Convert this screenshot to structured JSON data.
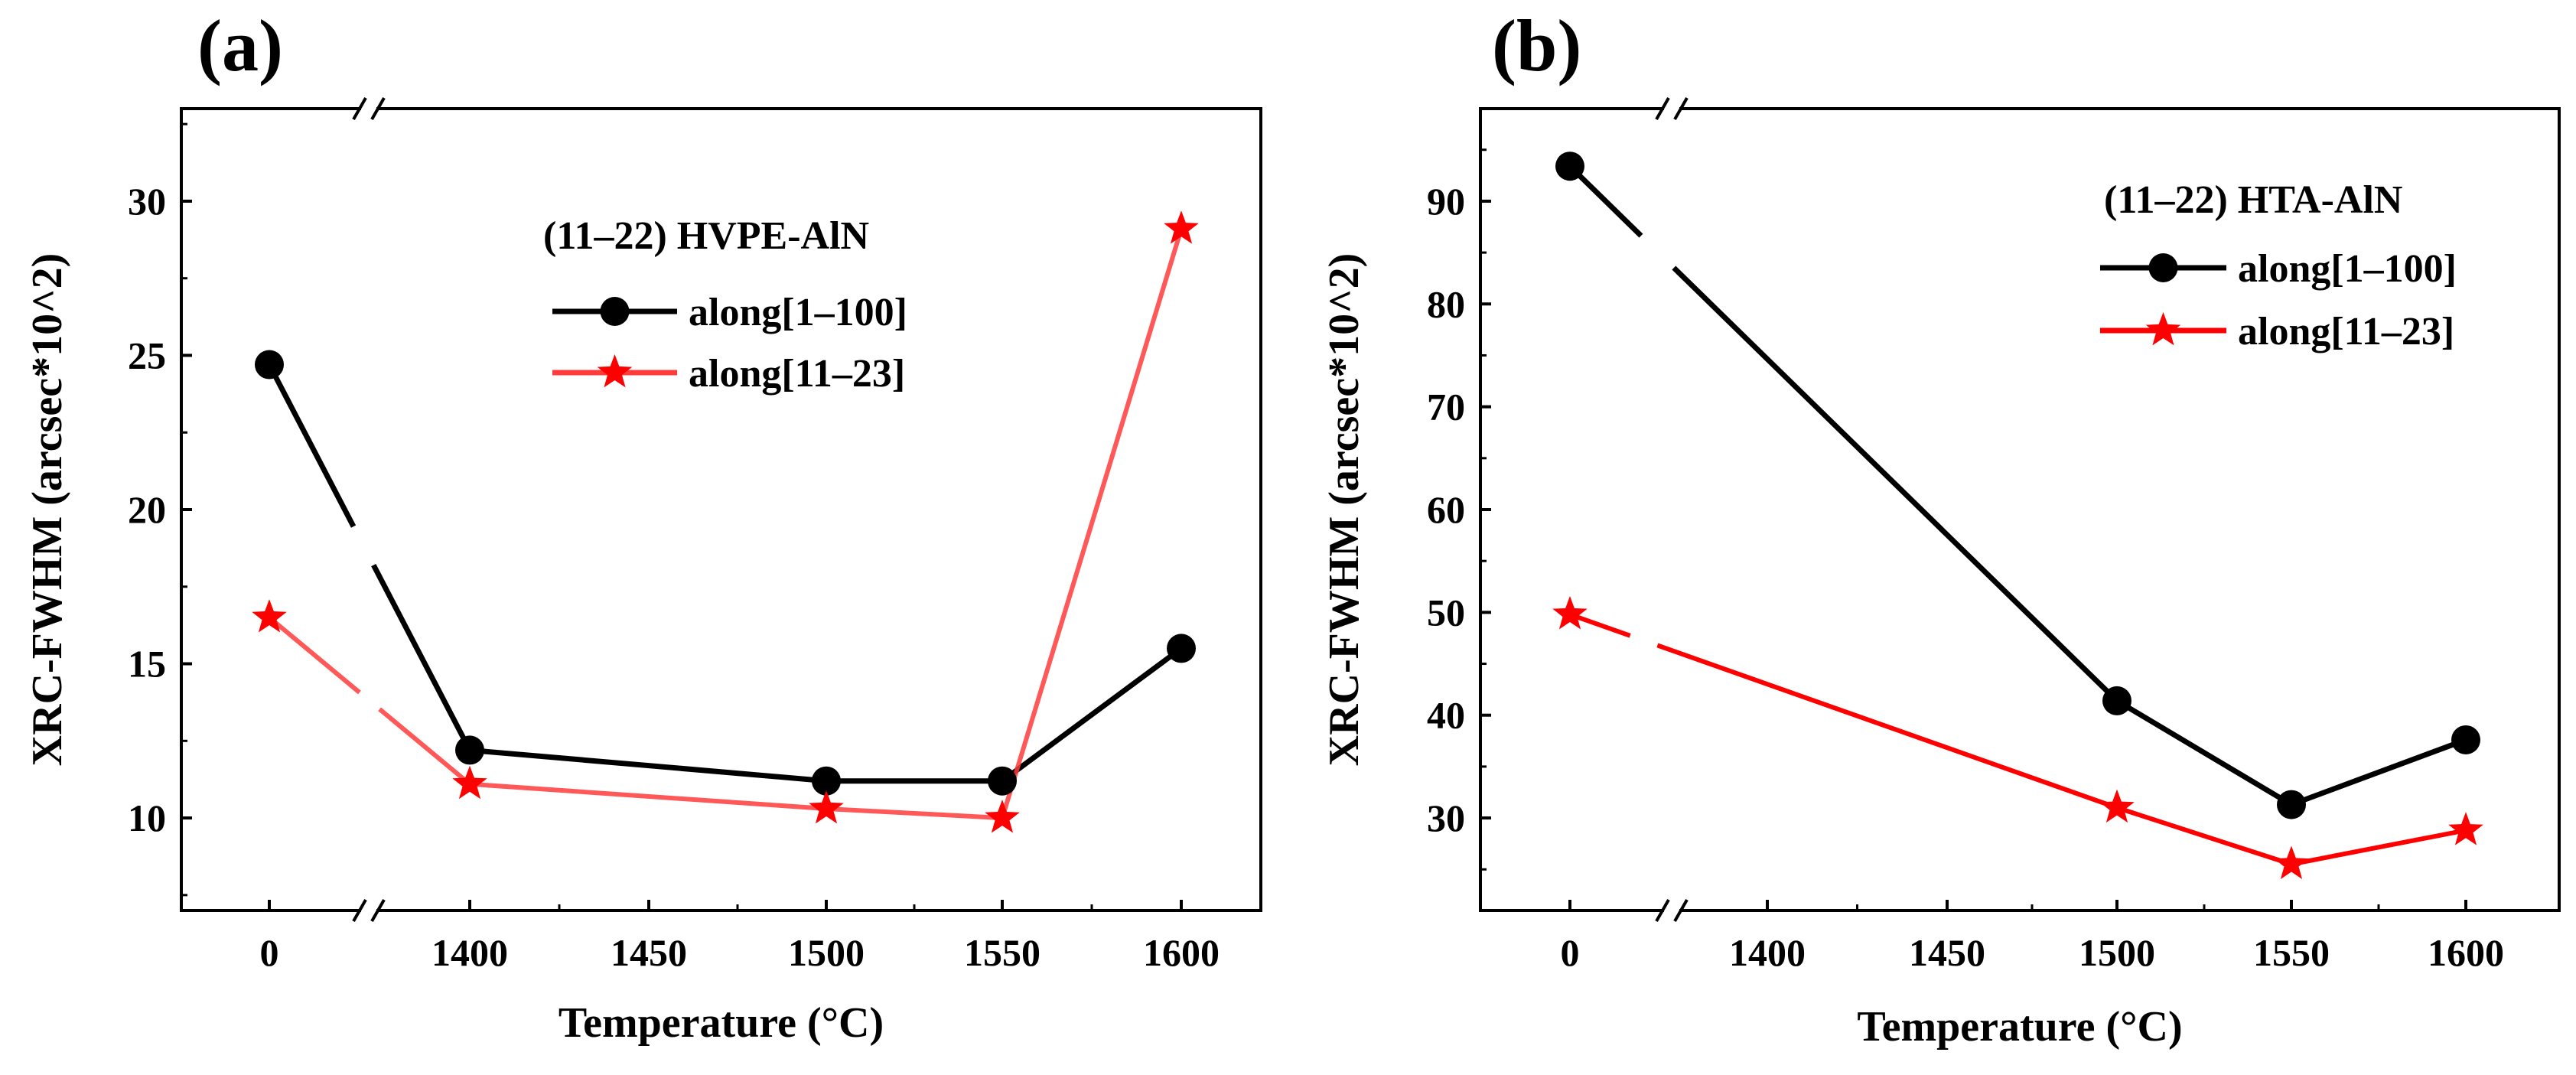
{
  "chart_data": [
    {
      "type": "line",
      "panel_label": "(a)",
      "legend_title": "(11–22) HVPE-AlN",
      "xlabel": "Temperature (°C)",
      "ylabel": "XRC-FWHM (arcsec*10^2)",
      "x_tick_labels": [
        "0",
        "1400",
        "1450",
        "1500",
        "1550",
        "1600"
      ],
      "x_axis_break": "between 0 and 1400",
      "ylim": [
        7,
        33
      ],
      "y_ticks": [
        10,
        15,
        20,
        25,
        30
      ],
      "legend_position": "top-right",
      "grid": false,
      "series": [
        {
          "name": "along[1–100]",
          "color": "#000000",
          "marker": "circle",
          "x": [
            0,
            1400,
            1500,
            1550,
            1600
          ],
          "values": [
            24.7,
            12.2,
            11.2,
            11.2,
            15.5
          ]
        },
        {
          "name": "along[11–23]",
          "color": "#ff3b3b",
          "marker": "star",
          "x": [
            0,
            1400,
            1500,
            1550,
            1600
          ],
          "values": [
            16.5,
            11.1,
            10.3,
            10.0,
            29.1
          ]
        }
      ]
    },
    {
      "type": "line",
      "panel_label": "(b)",
      "legend_title": "(11–22) HTA-AlN",
      "xlabel": "Temperature (°C)",
      "ylabel": "XRC-FWHM (arcsec*10^2)",
      "x_tick_labels": [
        "0",
        "1400",
        "1450",
        "1500",
        "1550",
        "1600"
      ],
      "x_axis_break": "between 0 and 1400",
      "ylim": [
        21,
        99
      ],
      "y_ticks": [
        30,
        40,
        50,
        60,
        70,
        80,
        90
      ],
      "legend_position": "top-right",
      "grid": false,
      "series": [
        {
          "name": "along[1–100]",
          "color": "#000000",
          "marker": "circle",
          "x": [
            0,
            1500,
            1550,
            1600
          ],
          "values": [
            93.4,
            41.4,
            31.3,
            37.6
          ]
        },
        {
          "name": "along[11–23]",
          "color": "#ff0000",
          "marker": "star",
          "x": [
            0,
            1500,
            1550,
            1600
          ],
          "values": [
            49.8,
            31.0,
            25.5,
            28.8
          ]
        }
      ]
    }
  ]
}
